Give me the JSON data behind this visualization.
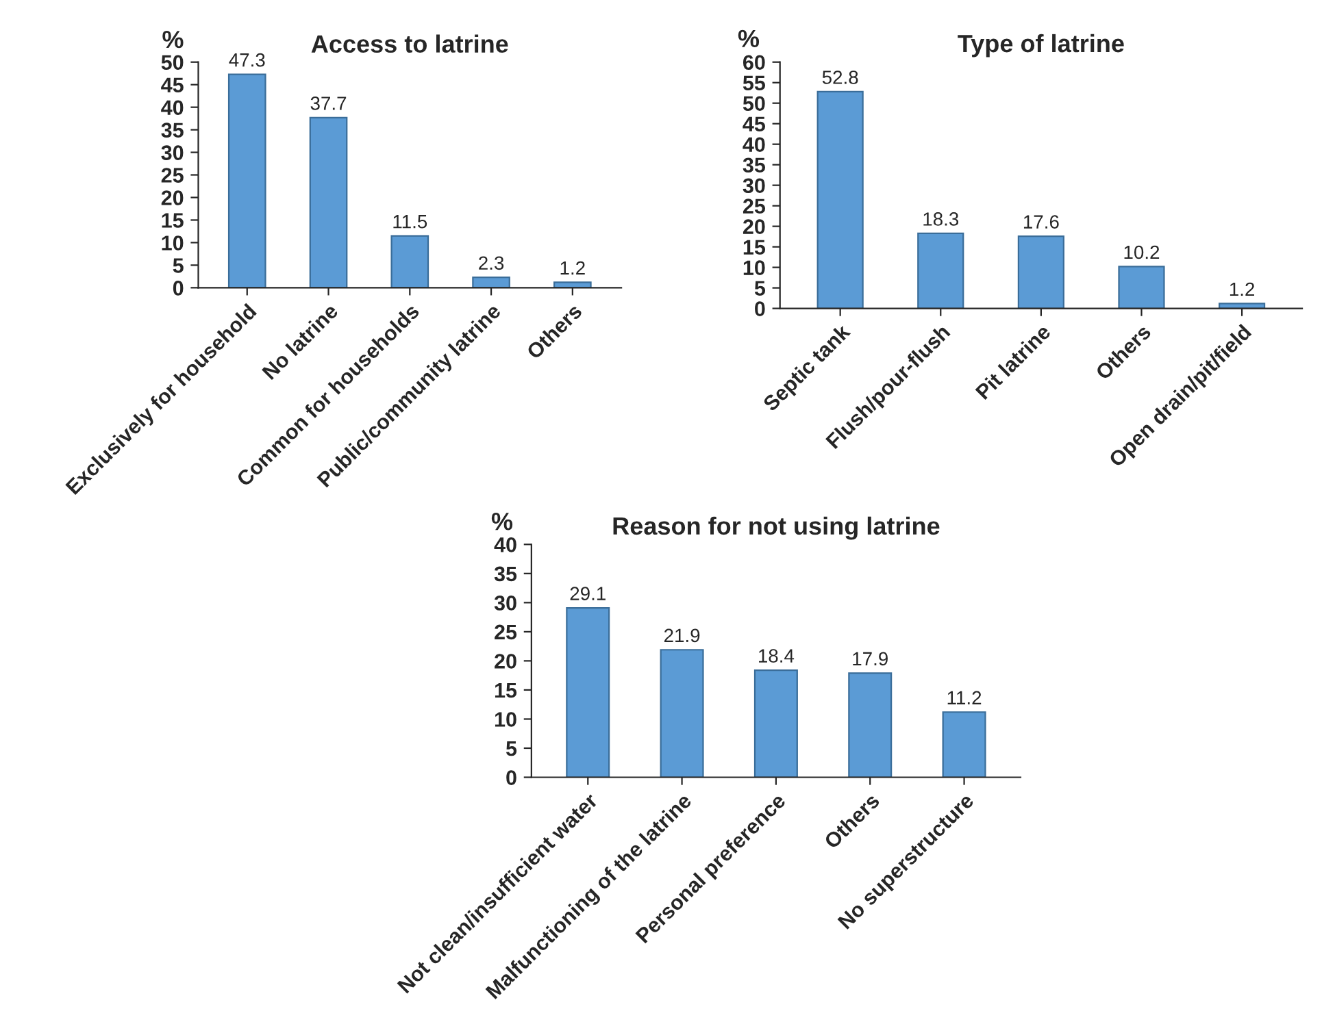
{
  "chart_data": [
    {
      "type": "bar",
      "title": "Access to latrine",
      "ylabel": "%",
      "categories": [
        "Exclusively for household",
        "No latrine",
        "Common for households",
        "Public/community latrine",
        "Others"
      ],
      "values": [
        47.3,
        37.7,
        11.5,
        2.3,
        1.2
      ],
      "color": "#5b9bd5",
      "ylim": [
        0,
        50
      ],
      "yticks": [
        0,
        5,
        10,
        15,
        20,
        25,
        30,
        35,
        40,
        45,
        50
      ],
      "data_labels": true,
      "grid": false,
      "legend": false
    },
    {
      "type": "bar",
      "title": "Type of latrine",
      "ylabel": "%",
      "categories": [
        "Septic tank",
        "Flush/pour-flush",
        "Pit latrine",
        "Others",
        "Open drain/pit/field"
      ],
      "values": [
        52.8,
        18.3,
        17.6,
        10.2,
        1.2
      ],
      "color": "#5b9bd5",
      "ylim": [
        0,
        60
      ],
      "yticks": [
        0,
        5,
        10,
        15,
        20,
        25,
        30,
        35,
        40,
        45,
        50,
        55,
        60
      ],
      "data_labels": true,
      "grid": false,
      "legend": false
    },
    {
      "type": "bar",
      "title": "Reason for not using latrine",
      "ylabel": "%",
      "categories": [
        "Not clean/insufficient water",
        "Malfunctioning of the latrine",
        "Personal preference",
        "Others",
        "No superstructure"
      ],
      "values": [
        29.1,
        21.9,
        18.4,
        17.9,
        11.2
      ],
      "color": "#5b9bd5",
      "ylim": [
        0,
        40
      ],
      "yticks": [
        0,
        5,
        10,
        15,
        20,
        25,
        30,
        35,
        40
      ],
      "data_labels": true,
      "grid": false,
      "legend": false
    }
  ]
}
